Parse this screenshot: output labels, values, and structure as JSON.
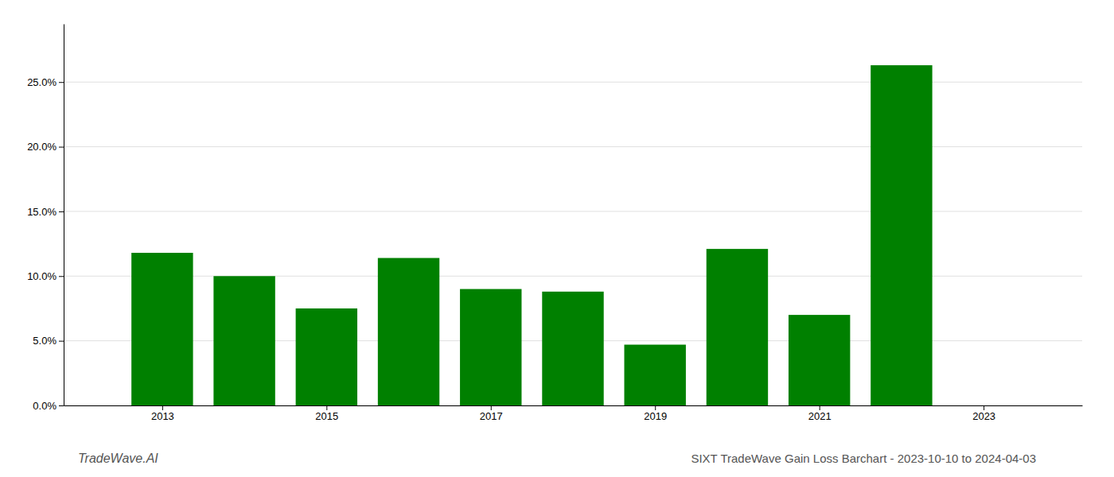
{
  "chart_data": {
    "type": "bar",
    "title": "SIXT TradeWave Gain Loss Barchart - 2023-10-10 to 2024-04-03",
    "annotations": [
      "TradeWave.AI"
    ],
    "x": [
      2013,
      2014,
      2015,
      2016,
      2017,
      2018,
      2019,
      2020,
      2021,
      2022
    ],
    "values": [
      0.118,
      0.1,
      0.075,
      0.114,
      0.09,
      0.088,
      0.047,
      0.121,
      0.07,
      0.263
    ],
    "color": "#008000",
    "xlim": [
      2011.8,
      2024.2
    ],
    "xticks": [
      2013,
      2015,
      2017,
      2019,
      2021,
      2023
    ],
    "ylim": [
      0,
      0.295
    ],
    "yticks": [
      {
        "value": 0.0,
        "label": "0.0%"
      },
      {
        "value": 0.05,
        "label": "5.0%"
      },
      {
        "value": 0.1,
        "label": "10.0%"
      },
      {
        "value": 0.15,
        "label": "15.0%"
      },
      {
        "value": 0.2,
        "label": "20.0%"
      },
      {
        "value": 0.25,
        "label": "25.0%"
      }
    ],
    "grid": true
  }
}
